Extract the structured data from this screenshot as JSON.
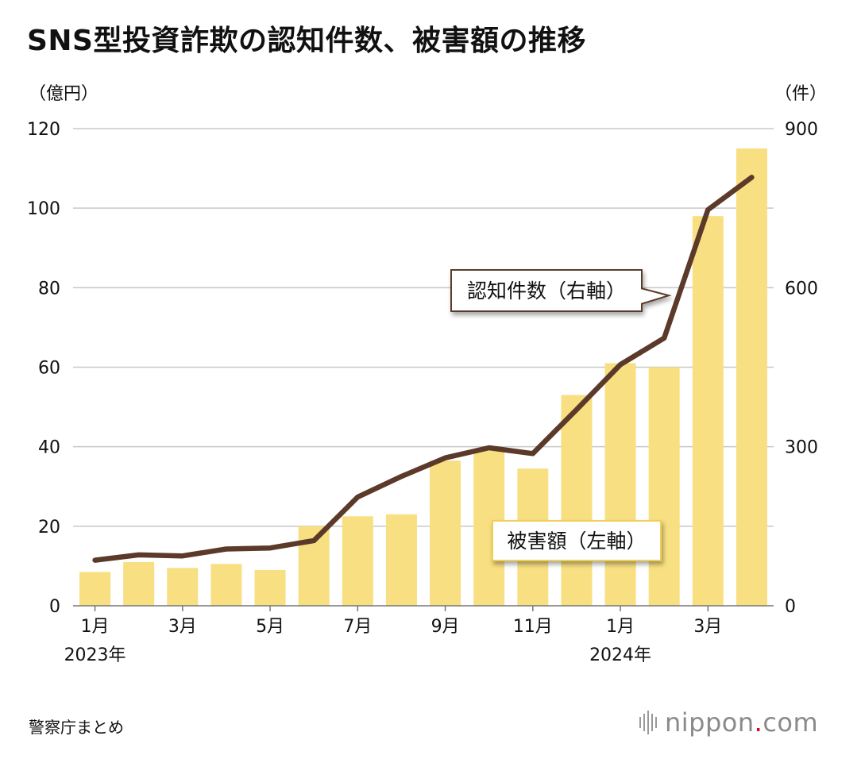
{
  "title": "SNS型投資詐欺の認知件数、被害額の推移",
  "source": "警察庁まとめ",
  "logo": {
    "name": "nippon",
    "dot": ".",
    "suffix": "com"
  },
  "colors": {
    "bar": "#f8df82",
    "line": "#5b3a2a",
    "grid": "#c8c8c8",
    "callout_line_border": "#5b3a2a",
    "callout_bar_border": "#f0cf55"
  },
  "chart_data": {
    "type": "bar+line",
    "title": "SNS型投資詐欺の認知件数、被害額の推移",
    "left_axis": {
      "unit_label": "（億円）",
      "min": 0,
      "max": 120,
      "ticks": [
        0,
        20,
        40,
        60,
        80,
        100,
        120
      ]
    },
    "right_axis": {
      "unit_label": "（件）",
      "min": 0,
      "max": 900,
      "ticks": [
        0,
        300,
        600,
        900
      ]
    },
    "x_tick_labels": [
      {
        "index": 0,
        "label": "1月",
        "year": "2023年"
      },
      {
        "index": 2,
        "label": "3月"
      },
      {
        "index": 4,
        "label": "5月"
      },
      {
        "index": 6,
        "label": "7月"
      },
      {
        "index": 8,
        "label": "9月"
      },
      {
        "index": 10,
        "label": "11月"
      },
      {
        "index": 12,
        "label": "1月",
        "year": "2024年"
      },
      {
        "index": 14,
        "label": "3月"
      }
    ],
    "months": [
      "2023-01",
      "2023-02",
      "2023-03",
      "2023-04",
      "2023-05",
      "2023-06",
      "2023-07",
      "2023-08",
      "2023-09",
      "2023-10",
      "2023-11",
      "2023-12",
      "2024-01",
      "2024-02",
      "2024-03",
      "2024-04"
    ],
    "series": [
      {
        "name": "被害額（左軸）",
        "type": "bar",
        "axis": "left",
        "values": [
          8.5,
          11,
          9.5,
          10.5,
          9,
          20,
          22.5,
          23,
          36.5,
          39,
          34.5,
          53,
          61,
          60,
          98,
          115
        ]
      },
      {
        "name": "認知件数（右軸）",
        "type": "line",
        "axis": "right",
        "values": [
          86,
          96,
          94,
          107,
          109,
          123,
          205,
          244,
          279,
          298,
          287,
          370,
          455,
          505,
          747,
          808
        ]
      }
    ]
  }
}
